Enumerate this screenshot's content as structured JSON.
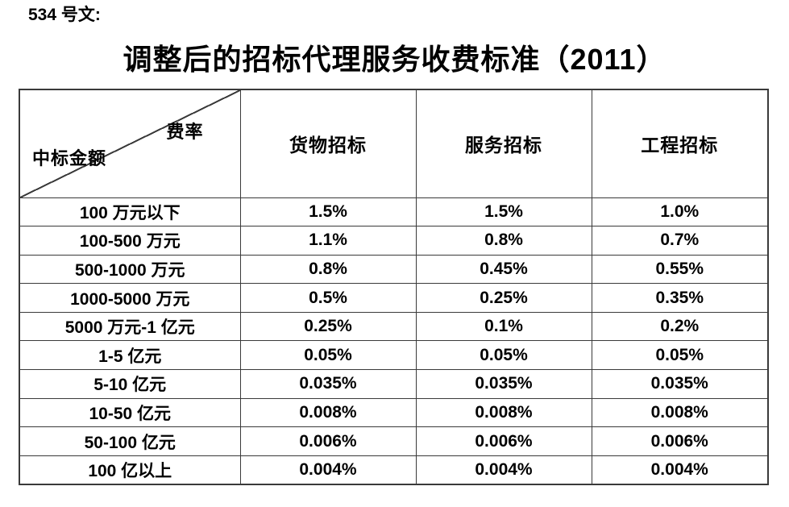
{
  "page": {
    "doc_number": "534 号文:",
    "title": "调整后的招标代理服务收费标准（2011）"
  },
  "fee_table": {
    "corner": {
      "rate_label": "费率",
      "amount_label": "中标金额"
    },
    "column_headers": [
      "货物招标",
      "服务招标",
      "工程招标"
    ],
    "rows": [
      {
        "label": "100 万元以下",
        "values": [
          "1.5%",
          "1.5%",
          "1.0%"
        ]
      },
      {
        "label": "100-500 万元",
        "values": [
          "1.1%",
          "0.8%",
          "0.7%"
        ]
      },
      {
        "label": "500-1000 万元",
        "values": [
          "0.8%",
          "0.45%",
          "0.55%"
        ]
      },
      {
        "label": "1000-5000 万元",
        "values": [
          "0.5%",
          "0.25%",
          "0.35%"
        ]
      },
      {
        "label": "5000 万元-1 亿元",
        "values": [
          "0.25%",
          "0.1%",
          "0.2%"
        ]
      },
      {
        "label": "1-5 亿元",
        "values": [
          "0.05%",
          "0.05%",
          "0.05%"
        ]
      },
      {
        "label": "5-10 亿元",
        "values": [
          "0.035%",
          "0.035%",
          "0.035%"
        ]
      },
      {
        "label": "10-50 亿元",
        "values": [
          "0.008%",
          "0.008%",
          "0.008%"
        ]
      },
      {
        "label": "50-100 亿元",
        "values": [
          "0.006%",
          "0.006%",
          "0.006%"
        ]
      },
      {
        "label": "100 亿以上",
        "values": [
          "0.004%",
          "0.004%",
          "0.004%"
        ]
      }
    ]
  },
  "colors": {
    "text": "#000000",
    "border": "#3a3a3a",
    "background": "#ffffff"
  }
}
